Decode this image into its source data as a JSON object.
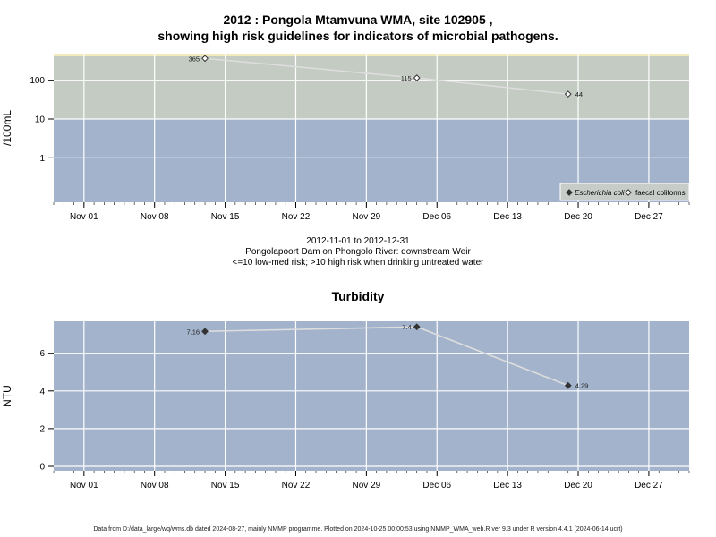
{
  "title_line1": "2012 : Pongola Mtamvuna WMA, site 102905 ,",
  "title_line2": "showing high risk guidelines for indicators of microbial pathogens.",
  "date_range": "2012-11-01 to 2012-12-31",
  "site_description": "Pongolapoort Dam on Phongolo River: downstream Weir",
  "risk_note": "<=10 low-med risk; >10 high risk when drinking untreated water",
  "footer": "Data from D:/data_large/wq/wms.db dated 2024-08-27, mainly NMMP programme. Plotted on 2024-10-25 00:00:53 using NMMP_WMA_web.R ver 9.3 under R version 4.4.1 (2024-06-14 ucrt)",
  "colors": {
    "low_risk_band": "#a2b3cb",
    "high_risk_band": "#c3cbc2",
    "top_strip": "#f2e9bc",
    "turbidity_bg": "#a2b3cb",
    "line": "#dddddd",
    "grid": "#ffffff"
  },
  "chart_data": [
    {
      "type": "line",
      "name": "microbial",
      "ylabel": "/100mL",
      "y_scale": "log10",
      "y_ticks": [
        1,
        10,
        100
      ],
      "y_tick_labels": [
        "1",
        "10",
        "100"
      ],
      "x_ticks": [
        "2012-11-01",
        "2012-11-08",
        "2012-11-15",
        "2012-11-22",
        "2012-11-29",
        "2012-12-06",
        "2012-12-13",
        "2012-12-20",
        "2012-12-27"
      ],
      "x_tick_labels": [
        "Nov 01",
        "Nov 08",
        "Nov 15",
        "Nov 22",
        "Nov 29",
        "Dec 06",
        "Dec 13",
        "Dec 20",
        "Dec 27"
      ],
      "x_range": [
        "2012-10-29",
        "2012-12-31"
      ],
      "guideline": 10,
      "legend_position": "bottom-right",
      "legend": [
        {
          "label": "Escherichia coli",
          "marker": "filled-diamond",
          "italic": true
        },
        {
          "label": "faecal coliforms",
          "marker": "open-diamond",
          "italic": false
        }
      ],
      "series": [
        {
          "name": "faecal coliforms",
          "marker": "open-diamond",
          "points": [
            {
              "x": "2012-11-13",
              "y": 365,
              "label": "365"
            },
            {
              "x": "2012-12-04",
              "y": 115,
              "label": "115"
            },
            {
              "x": "2012-12-19",
              "y": 44,
              "label": "44"
            }
          ]
        }
      ]
    },
    {
      "type": "line",
      "name": "turbidity",
      "title": "Turbidity",
      "ylabel": "NTU",
      "y_scale": "linear",
      "y_ticks": [
        0,
        2,
        4,
        6
      ],
      "y_tick_labels": [
        "0",
        "2",
        "4",
        "6"
      ],
      "x_ticks": [
        "2012-11-01",
        "2012-11-08",
        "2012-11-15",
        "2012-11-22",
        "2012-11-29",
        "2012-12-06",
        "2012-12-13",
        "2012-12-20",
        "2012-12-27"
      ],
      "x_tick_labels": [
        "Nov 01",
        "Nov 08",
        "Nov 15",
        "Nov 22",
        "Nov 29",
        "Dec 06",
        "Dec 13",
        "Dec 20",
        "Dec 27"
      ],
      "x_range": [
        "2012-10-29",
        "2012-12-31"
      ],
      "series": [
        {
          "marker": "filled-diamond",
          "points": [
            {
              "x": "2012-11-13",
              "y": 7.16,
              "label": "7.16"
            },
            {
              "x": "2012-12-04",
              "y": 7.4,
              "label": "7.4"
            },
            {
              "x": "2012-12-19",
              "y": 4.29,
              "label": "4.29"
            }
          ]
        }
      ]
    }
  ]
}
